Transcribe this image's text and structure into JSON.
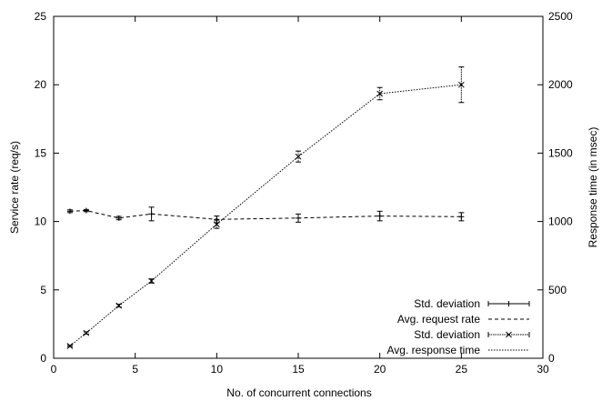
{
  "chart_data": {
    "type": "line",
    "xlabel": "No. of concurrent connections",
    "ylabel": "Service rate (req/s)",
    "y2label": "Response time (in msec)",
    "xlim": [
      0,
      30
    ],
    "ylim": [
      0,
      25
    ],
    "y2lim": [
      0,
      2500
    ],
    "xticks": [
      0,
      5,
      10,
      15,
      20,
      25,
      30
    ],
    "yticks": [
      0,
      5,
      10,
      15,
      20,
      25
    ],
    "y2ticks": [
      0,
      500,
      1000,
      1500,
      2000,
      2500
    ],
    "grid": false,
    "legend_position": "bottom-right",
    "legend": [
      {
        "label": "Std. deviation",
        "style": "errorbar-plus"
      },
      {
        "label": "Avg. request rate",
        "style": "dashed"
      },
      {
        "label": "Std. deviation",
        "style": "errorbar-cross"
      },
      {
        "label": "Avg. response time",
        "style": "dotted"
      }
    ],
    "series": [
      {
        "axis": "left",
        "marker": "plus",
        "line": "dashed",
        "x": [
          1,
          2,
          4,
          6,
          10,
          15,
          20,
          25
        ],
        "y": [
          10.75,
          10.8,
          10.25,
          10.55,
          10.15,
          10.25,
          10.4,
          10.35
        ],
        "err": [
          0.1,
          0.08,
          0.12,
          0.5,
          0.25,
          0.3,
          0.35,
          0.3
        ]
      },
      {
        "axis": "right",
        "marker": "cross",
        "line": "dotted",
        "x": [
          1,
          2,
          4,
          6,
          10,
          15,
          20,
          25
        ],
        "y": [
          90,
          185,
          385,
          565,
          980,
          1475,
          1935,
          2000
        ],
        "err": [
          5,
          8,
          10,
          15,
          30,
          40,
          45,
          130
        ]
      }
    ]
  }
}
